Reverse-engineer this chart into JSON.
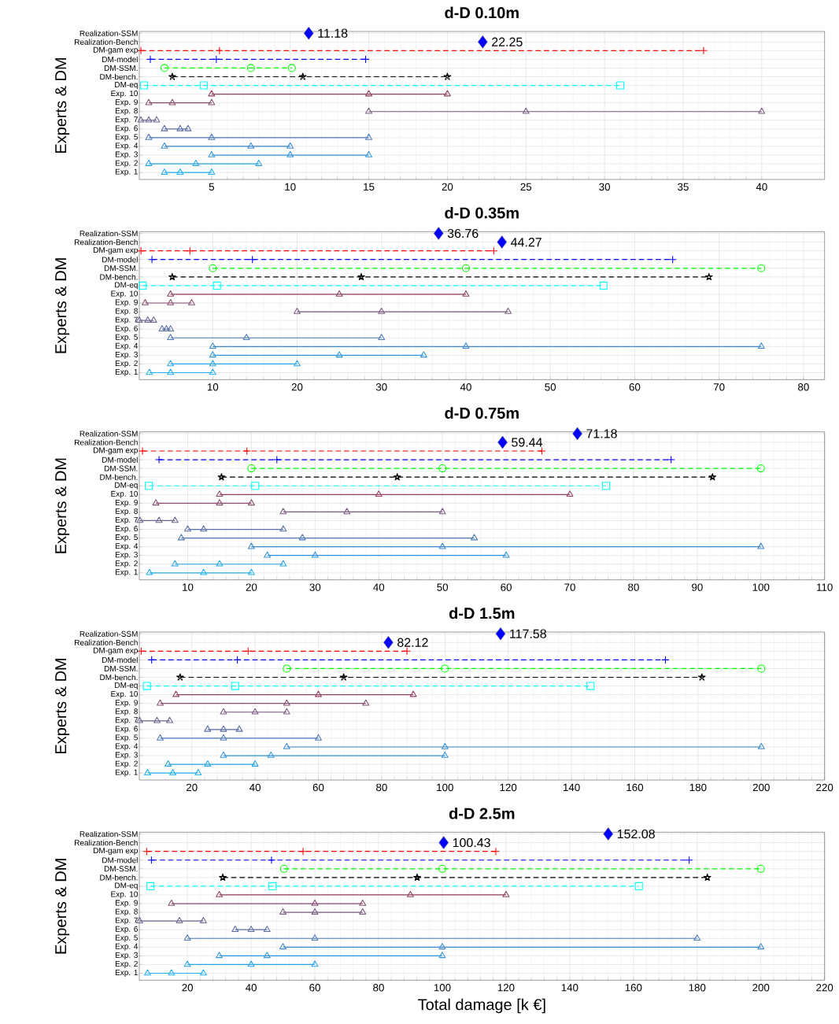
{
  "chart_data": [
    {
      "type": "line",
      "title": "d-D 0.10m",
      "ylabel": "Experts & DM",
      "xlim": [
        0.4,
        44
      ],
      "ylim": [
        0.2,
        17.2
      ],
      "xticks": [
        5,
        10,
        15,
        20,
        25,
        30,
        35,
        40
      ],
      "grid": true,
      "yticks": [
        {
          "value": 1,
          "label": "Exp. 1"
        },
        {
          "value": 2,
          "label": "Exp. 2"
        },
        {
          "value": 3,
          "label": "Exp. 3"
        },
        {
          "value": 4,
          "label": "Exp. 4"
        },
        {
          "value": 5,
          "label": "Exp. 5"
        },
        {
          "value": 6,
          "label": "Exp. 6"
        },
        {
          "value": 7,
          "label": "Exp. 7"
        },
        {
          "value": 8,
          "label": "Exp. 8"
        },
        {
          "value": 9,
          "label": "Exp. 9"
        },
        {
          "value": 10,
          "label": "Exp. 10"
        },
        {
          "value": 11,
          "label": "DM-eq"
        },
        {
          "value": 12,
          "label": "DM-bench."
        },
        {
          "value": 13,
          "label": "DM-SSM."
        },
        {
          "value": 14,
          "label": "DM-model"
        },
        {
          "value": 15,
          "label": "DM-gam exp"
        },
        {
          "value": 16,
          "label": "Realization-Bench"
        },
        {
          "value": 17,
          "label": "Realization-SSM"
        }
      ],
      "series": [
        {
          "color": "#22b0f0",
          "marker": "triangle",
          "line_style": "solid",
          "x": [
            2,
            3,
            5
          ],
          "values": [
            1,
            1,
            1
          ]
        },
        {
          "color": "#2aa4e4",
          "marker": "triangle",
          "line_style": "solid",
          "x": [
            1,
            4,
            8
          ],
          "values": [
            2,
            2,
            2
          ]
        },
        {
          "color": "#3096dc",
          "marker": "triangle",
          "line_style": "solid",
          "x": [
            5,
            10,
            15
          ],
          "values": [
            3,
            3,
            3
          ]
        },
        {
          "color": "#3a88cc",
          "marker": "triangle",
          "line_style": "solid",
          "x": [
            2,
            7.5,
            10
          ],
          "values": [
            4,
            4,
            4
          ]
        },
        {
          "color": "#4a78b8",
          "marker": "triangle",
          "line_style": "solid",
          "x": [
            1,
            5,
            15
          ],
          "values": [
            5,
            5,
            5
          ]
        },
        {
          "color": "#5a6ea5",
          "marker": "triangle",
          "line_style": "solid",
          "x": [
            2,
            3,
            3.5
          ],
          "values": [
            6,
            6,
            6
          ]
        },
        {
          "color": "#6a6690",
          "marker": "triangle",
          "line_style": "solid",
          "x": [
            0.5,
            1,
            1.5
          ],
          "values": [
            7,
            7,
            7
          ]
        },
        {
          "color": "#7a5a80",
          "marker": "triangle",
          "line_style": "solid",
          "x": [
            15,
            25,
            40
          ],
          "values": [
            8,
            8,
            8
          ]
        },
        {
          "color": "#864d70",
          "marker": "triangle",
          "line_style": "solid",
          "x": [
            1,
            2.5,
            5
          ],
          "values": [
            9,
            9,
            9
          ]
        },
        {
          "color": "#923f62",
          "marker": "triangle",
          "line_style": "solid",
          "x": [
            5,
            15,
            20
          ],
          "values": [
            10,
            10,
            10
          ]
        },
        {
          "color": "#00ffff",
          "marker": "square",
          "line_style": "dashed",
          "x": [
            0.7,
            4.5,
            31
          ],
          "values": [
            11,
            11,
            11
          ]
        },
        {
          "color": "#000000",
          "marker": "star",
          "line_style": "dashed",
          "x": [
            2.5,
            10.8,
            20
          ],
          "values": [
            12,
            12,
            12
          ]
        },
        {
          "color": "#00ff00",
          "marker": "circle",
          "line_style": "dashed",
          "x": [
            2,
            7.5,
            10.1
          ],
          "values": [
            13,
            13,
            13
          ]
        },
        {
          "color": "#0000ff",
          "marker": "cross",
          "line_style": "dashed",
          "x": [
            1.1,
            5.3,
            14.8
          ],
          "values": [
            14,
            14,
            14
          ]
        },
        {
          "color": "#ff0000",
          "marker": "cross",
          "line_style": "dashed",
          "x": [
            0.5,
            5.5,
            36.3
          ],
          "values": [
            15,
            15,
            15
          ]
        },
        {
          "type": "scatter",
          "color": "#0000ff",
          "marker": "diamond",
          "x": [
            22.25
          ],
          "values": [
            16
          ]
        },
        {
          "type": "scatter",
          "color": "#0000ff",
          "marker": "diamond",
          "x": [
            11.18
          ],
          "values": [
            17
          ]
        }
      ],
      "annotations": [
        {
          "text": "22.25",
          "x": 22.25,
          "y": 16
        },
        {
          "text": "11.18",
          "x": 11.18,
          "y": 17
        }
      ]
    },
    {
      "type": "line",
      "title": "d-D 0.35m",
      "ylabel": "Experts & DM",
      "xlim": [
        1.3,
        82.5
      ],
      "ylim": [
        0.2,
        17.2
      ],
      "xticks": [
        10,
        20,
        30,
        40,
        50,
        60,
        70,
        80
      ],
      "grid": true,
      "yticks": [
        {
          "value": 1,
          "label": "Exp. 1"
        },
        {
          "value": 2,
          "label": "Exp. 2"
        },
        {
          "value": 3,
          "label": "Exp. 3"
        },
        {
          "value": 4,
          "label": "Exp. 4"
        },
        {
          "value": 5,
          "label": "Exp. 5"
        },
        {
          "value": 6,
          "label": "Exp. 6"
        },
        {
          "value": 7,
          "label": "Exp. 7"
        },
        {
          "value": 8,
          "label": "Exp. 8"
        },
        {
          "value": 9,
          "label": "Exp. 9"
        },
        {
          "value": 10,
          "label": "Exp. 10"
        },
        {
          "value": 11,
          "label": "DM-eq"
        },
        {
          "value": 12,
          "label": "DM-bench."
        },
        {
          "value": 13,
          "label": "DM-SSM."
        },
        {
          "value": 14,
          "label": "DM-model"
        },
        {
          "value": 15,
          "label": "DM-gam exp"
        },
        {
          "value": 16,
          "label": "Realization-Bench"
        },
        {
          "value": 17,
          "label": "Realization-SSM"
        }
      ],
      "series": [
        {
          "color": "#22b0f0",
          "marker": "triangle",
          "line_style": "solid",
          "x": [
            2.5,
            5,
            10
          ],
          "values": [
            1,
            1,
            1
          ]
        },
        {
          "color": "#2aa4e4",
          "marker": "triangle",
          "line_style": "solid",
          "x": [
            5,
            10,
            20
          ],
          "values": [
            2,
            2,
            2
          ]
        },
        {
          "color": "#3096dc",
          "marker": "triangle",
          "line_style": "solid",
          "x": [
            10,
            25,
            35
          ],
          "values": [
            3,
            3,
            3
          ]
        },
        {
          "color": "#3a88cc",
          "marker": "triangle",
          "line_style": "solid",
          "x": [
            10,
            40,
            75
          ],
          "values": [
            4,
            4,
            4
          ]
        },
        {
          "color": "#4a78b8",
          "marker": "triangle",
          "line_style": "solid",
          "x": [
            5,
            14,
            30
          ],
          "values": [
            5,
            5,
            5
          ]
        },
        {
          "color": "#5a6ea5",
          "marker": "triangle",
          "line_style": "solid",
          "x": [
            4,
            4.5,
            5
          ],
          "values": [
            6,
            6,
            6
          ]
        },
        {
          "color": "#6a6690",
          "marker": "triangle",
          "line_style": "solid",
          "x": [
            1.3,
            2.3,
            3
          ],
          "values": [
            7,
            7,
            7
          ]
        },
        {
          "color": "#7a5a80",
          "marker": "triangle",
          "line_style": "solid",
          "x": [
            20,
            30,
            45
          ],
          "values": [
            8,
            8,
            8
          ]
        },
        {
          "color": "#864d70",
          "marker": "triangle",
          "line_style": "solid",
          "x": [
            2,
            5,
            7.5
          ],
          "values": [
            9,
            9,
            9
          ]
        },
        {
          "color": "#923f62",
          "marker": "triangle",
          "line_style": "solid",
          "x": [
            5,
            25,
            40
          ],
          "values": [
            10,
            10,
            10
          ]
        },
        {
          "color": "#00ffff",
          "marker": "square",
          "line_style": "dashed",
          "x": [
            1.7,
            10.5,
            56.3
          ],
          "values": [
            11,
            11,
            11
          ]
        },
        {
          "color": "#000000",
          "marker": "star",
          "line_style": "dashed",
          "x": [
            5.2,
            27.6,
            68.8
          ],
          "values": [
            12,
            12,
            12
          ]
        },
        {
          "color": "#00ff00",
          "marker": "circle",
          "line_style": "dashed",
          "x": [
            10,
            40,
            75
          ],
          "values": [
            13,
            13,
            13
          ]
        },
        {
          "color": "#0000ff",
          "marker": "cross",
          "line_style": "dashed",
          "x": [
            2.8,
            14.7,
            64.5
          ],
          "values": [
            14,
            14,
            14
          ]
        },
        {
          "color": "#ff0000",
          "marker": "cross",
          "line_style": "dashed",
          "x": [
            1.5,
            7.3,
            43.3
          ],
          "values": [
            15,
            15,
            15
          ]
        },
        {
          "type": "scatter",
          "color": "#0000ff",
          "marker": "diamond",
          "x": [
            44.27
          ],
          "values": [
            16
          ]
        },
        {
          "type": "scatter",
          "color": "#0000ff",
          "marker": "diamond",
          "x": [
            36.76
          ],
          "values": [
            17
          ]
        }
      ],
      "annotations": [
        {
          "text": "44.27",
          "x": 44.27,
          "y": 16
        },
        {
          "text": "36.76",
          "x": 36.76,
          "y": 17
        }
      ]
    },
    {
      "type": "line",
      "title": "d-D 0.75m",
      "ylabel": "Experts & DM",
      "xlim": [
        2.4,
        110
      ],
      "ylim": [
        0.2,
        17.2
      ],
      "xticks": [
        10,
        20,
        30,
        40,
        50,
        60,
        70,
        80,
        90,
        100,
        110
      ],
      "grid": true,
      "yticks": [
        {
          "value": 1,
          "label": "Exp. 1"
        },
        {
          "value": 2,
          "label": "Exp. 2"
        },
        {
          "value": 3,
          "label": "Exp. 3"
        },
        {
          "value": 4,
          "label": "Exp. 4"
        },
        {
          "value": 5,
          "label": "Exp. 5"
        },
        {
          "value": 6,
          "label": "Exp. 6"
        },
        {
          "value": 7,
          "label": "Exp. 7"
        },
        {
          "value": 8,
          "label": "Exp. 8"
        },
        {
          "value": 9,
          "label": "Exp. 9"
        },
        {
          "value": 10,
          "label": "Exp. 10"
        },
        {
          "value": 11,
          "label": "DM-eq"
        },
        {
          "value": 12,
          "label": "DM-bench."
        },
        {
          "value": 13,
          "label": "DM-SSM."
        },
        {
          "value": 14,
          "label": "DM-model"
        },
        {
          "value": 15,
          "label": "DM-gam exp"
        },
        {
          "value": 16,
          "label": "Realization-Bench"
        },
        {
          "value": 17,
          "label": "Realization-SSM"
        }
      ],
      "series": [
        {
          "color": "#22b0f0",
          "marker": "triangle",
          "line_style": "solid",
          "x": [
            4,
            12.5,
            20
          ],
          "values": [
            1,
            1,
            1
          ]
        },
        {
          "color": "#2aa4e4",
          "marker": "triangle",
          "line_style": "solid",
          "x": [
            8,
            15,
            25
          ],
          "values": [
            2,
            2,
            2
          ]
        },
        {
          "color": "#3096dc",
          "marker": "triangle",
          "line_style": "solid",
          "x": [
            22.5,
            30,
            60
          ],
          "values": [
            3,
            3,
            3
          ]
        },
        {
          "color": "#3a88cc",
          "marker": "triangle",
          "line_style": "solid",
          "x": [
            20,
            50,
            100
          ],
          "values": [
            4,
            4,
            4
          ]
        },
        {
          "color": "#4a78b8",
          "marker": "triangle",
          "line_style": "solid",
          "x": [
            9,
            28,
            55
          ],
          "values": [
            5,
            5,
            5
          ]
        },
        {
          "color": "#5a6ea5",
          "marker": "triangle",
          "line_style": "solid",
          "x": [
            10,
            12.5,
            25
          ],
          "values": [
            6,
            6,
            6
          ]
        },
        {
          "color": "#6a6690",
          "marker": "triangle",
          "line_style": "solid",
          "x": [
            2.5,
            5.5,
            8
          ],
          "values": [
            7,
            7,
            7
          ]
        },
        {
          "color": "#7a5a80",
          "marker": "triangle",
          "line_style": "solid",
          "x": [
            25,
            35,
            50
          ],
          "values": [
            8,
            8,
            8
          ]
        },
        {
          "color": "#864d70",
          "marker": "triangle",
          "line_style": "solid",
          "x": [
            5,
            15,
            20
          ],
          "values": [
            9,
            9,
            9
          ]
        },
        {
          "color": "#923f62",
          "marker": "triangle",
          "line_style": "solid",
          "x": [
            15,
            40,
            70
          ],
          "values": [
            10,
            10,
            10
          ]
        },
        {
          "color": "#00ffff",
          "marker": "square",
          "line_style": "dashed",
          "x": [
            3.9,
            20.6,
            75.7
          ],
          "values": [
            11,
            11,
            11
          ]
        },
        {
          "color": "#000000",
          "marker": "star",
          "line_style": "dashed",
          "x": [
            15.3,
            42.9,
            92.4
          ],
          "values": [
            12,
            12,
            12
          ]
        },
        {
          "color": "#00ff00",
          "marker": "circle",
          "line_style": "dashed",
          "x": [
            20,
            50,
            100
          ],
          "values": [
            13,
            13,
            13
          ]
        },
        {
          "color": "#0000ff",
          "marker": "cross",
          "line_style": "dashed",
          "x": [
            5.5,
            24,
            85.9
          ],
          "values": [
            14,
            14,
            14
          ]
        },
        {
          "color": "#ff0000",
          "marker": "cross",
          "line_style": "dashed",
          "x": [
            2.9,
            19.3,
            65.6
          ],
          "values": [
            15,
            15,
            15
          ]
        },
        {
          "type": "scatter",
          "color": "#0000ff",
          "marker": "diamond",
          "x": [
            59.44
          ],
          "values": [
            16
          ]
        },
        {
          "type": "scatter",
          "color": "#0000ff",
          "marker": "diamond",
          "x": [
            71.18
          ],
          "values": [
            17
          ]
        }
      ],
      "annotations": [
        {
          "text": "59.44",
          "x": 59.44,
          "y": 16
        },
        {
          "text": "71.18",
          "x": 71.18,
          "y": 17
        }
      ]
    },
    {
      "type": "line",
      "title": "d-D 1.5m",
      "ylabel": "Experts & DM",
      "xlim": [
        3.4,
        220
      ],
      "ylim": [
        0.2,
        17.2
      ],
      "xticks": [
        20,
        40,
        60,
        80,
        100,
        120,
        140,
        160,
        180,
        200,
        220
      ],
      "grid": true,
      "yticks": [
        {
          "value": 1,
          "label": "Exp. 1"
        },
        {
          "value": 2,
          "label": "Exp. 2"
        },
        {
          "value": 3,
          "label": "Exp. 3"
        },
        {
          "value": 4,
          "label": "Exp. 4"
        },
        {
          "value": 5,
          "label": "Exp. 5"
        },
        {
          "value": 6,
          "label": "Exp. 6"
        },
        {
          "value": 7,
          "label": "Exp. 7"
        },
        {
          "value": 8,
          "label": "Exp. 8"
        },
        {
          "value": 9,
          "label": "Exp. 9"
        },
        {
          "value": 10,
          "label": "Exp. 10"
        },
        {
          "value": 11,
          "label": "DM-eq"
        },
        {
          "value": 12,
          "label": "DM-bench."
        },
        {
          "value": 13,
          "label": "DM-SSM."
        },
        {
          "value": 14,
          "label": "DM-model"
        },
        {
          "value": 15,
          "label": "DM-gam exp"
        },
        {
          "value": 16,
          "label": "Realization-Bench"
        },
        {
          "value": 17,
          "label": "Realization-SSM"
        }
      ],
      "series": [
        {
          "color": "#22b0f0",
          "marker": "triangle",
          "line_style": "solid",
          "x": [
            6,
            14,
            22
          ],
          "values": [
            1,
            1,
            1
          ]
        },
        {
          "color": "#2aa4e4",
          "marker": "triangle",
          "line_style": "solid",
          "x": [
            12.5,
            25,
            40
          ],
          "values": [
            2,
            2,
            2
          ]
        },
        {
          "color": "#3096dc",
          "marker": "triangle",
          "line_style": "solid",
          "x": [
            30,
            45,
            100
          ],
          "values": [
            3,
            3,
            3
          ]
        },
        {
          "color": "#3a88cc",
          "marker": "triangle",
          "line_style": "solid",
          "x": [
            50,
            100,
            200
          ],
          "values": [
            4,
            4,
            4
          ]
        },
        {
          "color": "#4a78b8",
          "marker": "triangle",
          "line_style": "solid",
          "x": [
            10,
            30,
            60
          ],
          "values": [
            5,
            5,
            5
          ]
        },
        {
          "color": "#5a6ea5",
          "marker": "triangle",
          "line_style": "solid",
          "x": [
            25,
            30,
            35
          ],
          "values": [
            6,
            6,
            6
          ]
        },
        {
          "color": "#6a6690",
          "marker": "triangle",
          "line_style": "solid",
          "x": [
            3.5,
            9,
            13
          ],
          "values": [
            7,
            7,
            7
          ]
        },
        {
          "color": "#7a5a80",
          "marker": "triangle",
          "line_style": "solid",
          "x": [
            30,
            40,
            50
          ],
          "values": [
            8,
            8,
            8
          ]
        },
        {
          "color": "#864d70",
          "marker": "triangle",
          "line_style": "solid",
          "x": [
            10,
            50,
            75
          ],
          "values": [
            9,
            9,
            9
          ]
        },
        {
          "color": "#923f62",
          "marker": "triangle",
          "line_style": "solid",
          "x": [
            15,
            60,
            90
          ],
          "values": [
            10,
            10,
            10
          ]
        },
        {
          "color": "#00ffff",
          "marker": "square",
          "line_style": "dashed",
          "x": [
            5.8,
            33.7,
            146
          ],
          "values": [
            11,
            11,
            11
          ]
        },
        {
          "color": "#000000",
          "marker": "star",
          "line_style": "dashed",
          "x": [
            16.3,
            68,
            181.2
          ],
          "values": [
            12,
            12,
            12
          ]
        },
        {
          "color": "#00ff00",
          "marker": "circle",
          "line_style": "dashed",
          "x": [
            50,
            100,
            200
          ],
          "values": [
            13,
            13,
            13
          ]
        },
        {
          "color": "#0000ff",
          "marker": "cross",
          "line_style": "dashed",
          "x": [
            7.3,
            34.4,
            169.7
          ],
          "values": [
            14,
            14,
            14
          ]
        },
        {
          "color": "#ff0000",
          "marker": "cross",
          "line_style": "dashed",
          "x": [
            4,
            37.8,
            88
          ],
          "values": [
            15,
            15,
            15
          ]
        },
        {
          "type": "scatter",
          "color": "#0000ff",
          "marker": "diamond",
          "x": [
            82.12
          ],
          "values": [
            16
          ]
        },
        {
          "type": "scatter",
          "color": "#0000ff",
          "marker": "diamond",
          "x": [
            117.58
          ],
          "values": [
            17
          ]
        }
      ],
      "annotations": [
        {
          "text": "82.12",
          "x": 82.12,
          "y": 16
        },
        {
          "text": "117.58",
          "x": 117.58,
          "y": 17
        }
      ]
    },
    {
      "type": "line",
      "title": "d-D 2.5m",
      "ylabel": "Experts & DM",
      "xlabel": "Total damage [k €]",
      "xlim": [
        4.9,
        220
      ],
      "ylim": [
        0.2,
        17.2
      ],
      "xticks": [
        20,
        40,
        60,
        80,
        100,
        120,
        140,
        160,
        180,
        200,
        220
      ],
      "grid": true,
      "yticks": [
        {
          "value": 1,
          "label": "Exp. 1"
        },
        {
          "value": 2,
          "label": "Exp. 2"
        },
        {
          "value": 3,
          "label": "Exp. 3"
        },
        {
          "value": 4,
          "label": "Exp. 4"
        },
        {
          "value": 5,
          "label": "Exp. 5"
        },
        {
          "value": 6,
          "label": "Exp. 6"
        },
        {
          "value": 7,
          "label": "Exp. 7"
        },
        {
          "value": 8,
          "label": "Exp. 8"
        },
        {
          "value": 9,
          "label": "Exp. 9"
        },
        {
          "value": 10,
          "label": "Exp. 10"
        },
        {
          "value": 11,
          "label": "DM-eq"
        },
        {
          "value": 12,
          "label": "DM-bench."
        },
        {
          "value": 13,
          "label": "DM-SSM."
        },
        {
          "value": 14,
          "label": "DM-model"
        },
        {
          "value": 15,
          "label": "DM-gam exp"
        },
        {
          "value": 16,
          "label": "Realization-Bench"
        },
        {
          "value": 17,
          "label": "Realization-SSM"
        }
      ],
      "series": [
        {
          "color": "#22b0f0",
          "marker": "triangle",
          "line_style": "solid",
          "x": [
            7.5,
            15,
            25
          ],
          "values": [
            1,
            1,
            1
          ]
        },
        {
          "color": "#2aa4e4",
          "marker": "triangle",
          "line_style": "solid",
          "x": [
            20,
            40,
            60
          ],
          "values": [
            2,
            2,
            2
          ]
        },
        {
          "color": "#3096dc",
          "marker": "triangle",
          "line_style": "solid",
          "x": [
            30,
            45,
            100
          ],
          "values": [
            3,
            3,
            3
          ]
        },
        {
          "color": "#3a88cc",
          "marker": "triangle",
          "line_style": "solid",
          "x": [
            50,
            100,
            200
          ],
          "values": [
            4,
            4,
            4
          ]
        },
        {
          "color": "#4a78b8",
          "marker": "triangle",
          "line_style": "solid",
          "x": [
            20,
            60,
            180
          ],
          "values": [
            5,
            5,
            5
          ]
        },
        {
          "color": "#5a6ea5",
          "marker": "triangle",
          "line_style": "solid",
          "x": [
            35,
            40,
            45
          ],
          "values": [
            6,
            6,
            6
          ]
        },
        {
          "color": "#6a6690",
          "marker": "triangle",
          "line_style": "solid",
          "x": [
            5,
            17.5,
            25
          ],
          "values": [
            7,
            7,
            7
          ]
        },
        {
          "color": "#7a5a80",
          "marker": "triangle",
          "line_style": "solid",
          "x": [
            50,
            60,
            75
          ],
          "values": [
            8,
            8,
            8
          ]
        },
        {
          "color": "#864d70",
          "marker": "triangle",
          "line_style": "solid",
          "x": [
            15,
            60,
            75
          ],
          "values": [
            9,
            9,
            9
          ]
        },
        {
          "color": "#923f62",
          "marker": "triangle",
          "line_style": "solid",
          "x": [
            30,
            90,
            120
          ],
          "values": [
            10,
            10,
            10
          ]
        },
        {
          "color": "#00ffff",
          "marker": "square",
          "line_style": "dashed",
          "x": [
            8.4,
            46.7,
            161.7
          ],
          "values": [
            11,
            11,
            11
          ]
        },
        {
          "color": "#000000",
          "marker": "star",
          "line_style": "dashed",
          "x": [
            31.1,
            92.1,
            183.2
          ],
          "values": [
            12,
            12,
            12
          ]
        },
        {
          "color": "#00ff00",
          "marker": "circle",
          "line_style": "dashed",
          "x": [
            50.3,
            100,
            200
          ],
          "values": [
            13,
            13,
            13
          ]
        },
        {
          "color": "#0000ff",
          "marker": "cross",
          "line_style": "dashed",
          "x": [
            8.7,
            46.4,
            177.5
          ],
          "values": [
            14,
            14,
            14
          ]
        },
        {
          "color": "#ff0000",
          "marker": "cross",
          "line_style": "dashed",
          "x": [
            7.2,
            56.3,
            116.8
          ],
          "values": [
            15,
            15,
            15
          ]
        },
        {
          "type": "scatter",
          "color": "#0000ff",
          "marker": "diamond",
          "x": [
            100.43
          ],
          "values": [
            16
          ]
        },
        {
          "type": "scatter",
          "color": "#0000ff",
          "marker": "diamond",
          "x": [
            152.08
          ],
          "values": [
            17
          ]
        }
      ],
      "annotations": [
        {
          "text": "100.43",
          "x": 100.43,
          "y": 16
        },
        {
          "text": "152.08",
          "x": 152.08,
          "y": 17
        }
      ]
    }
  ]
}
